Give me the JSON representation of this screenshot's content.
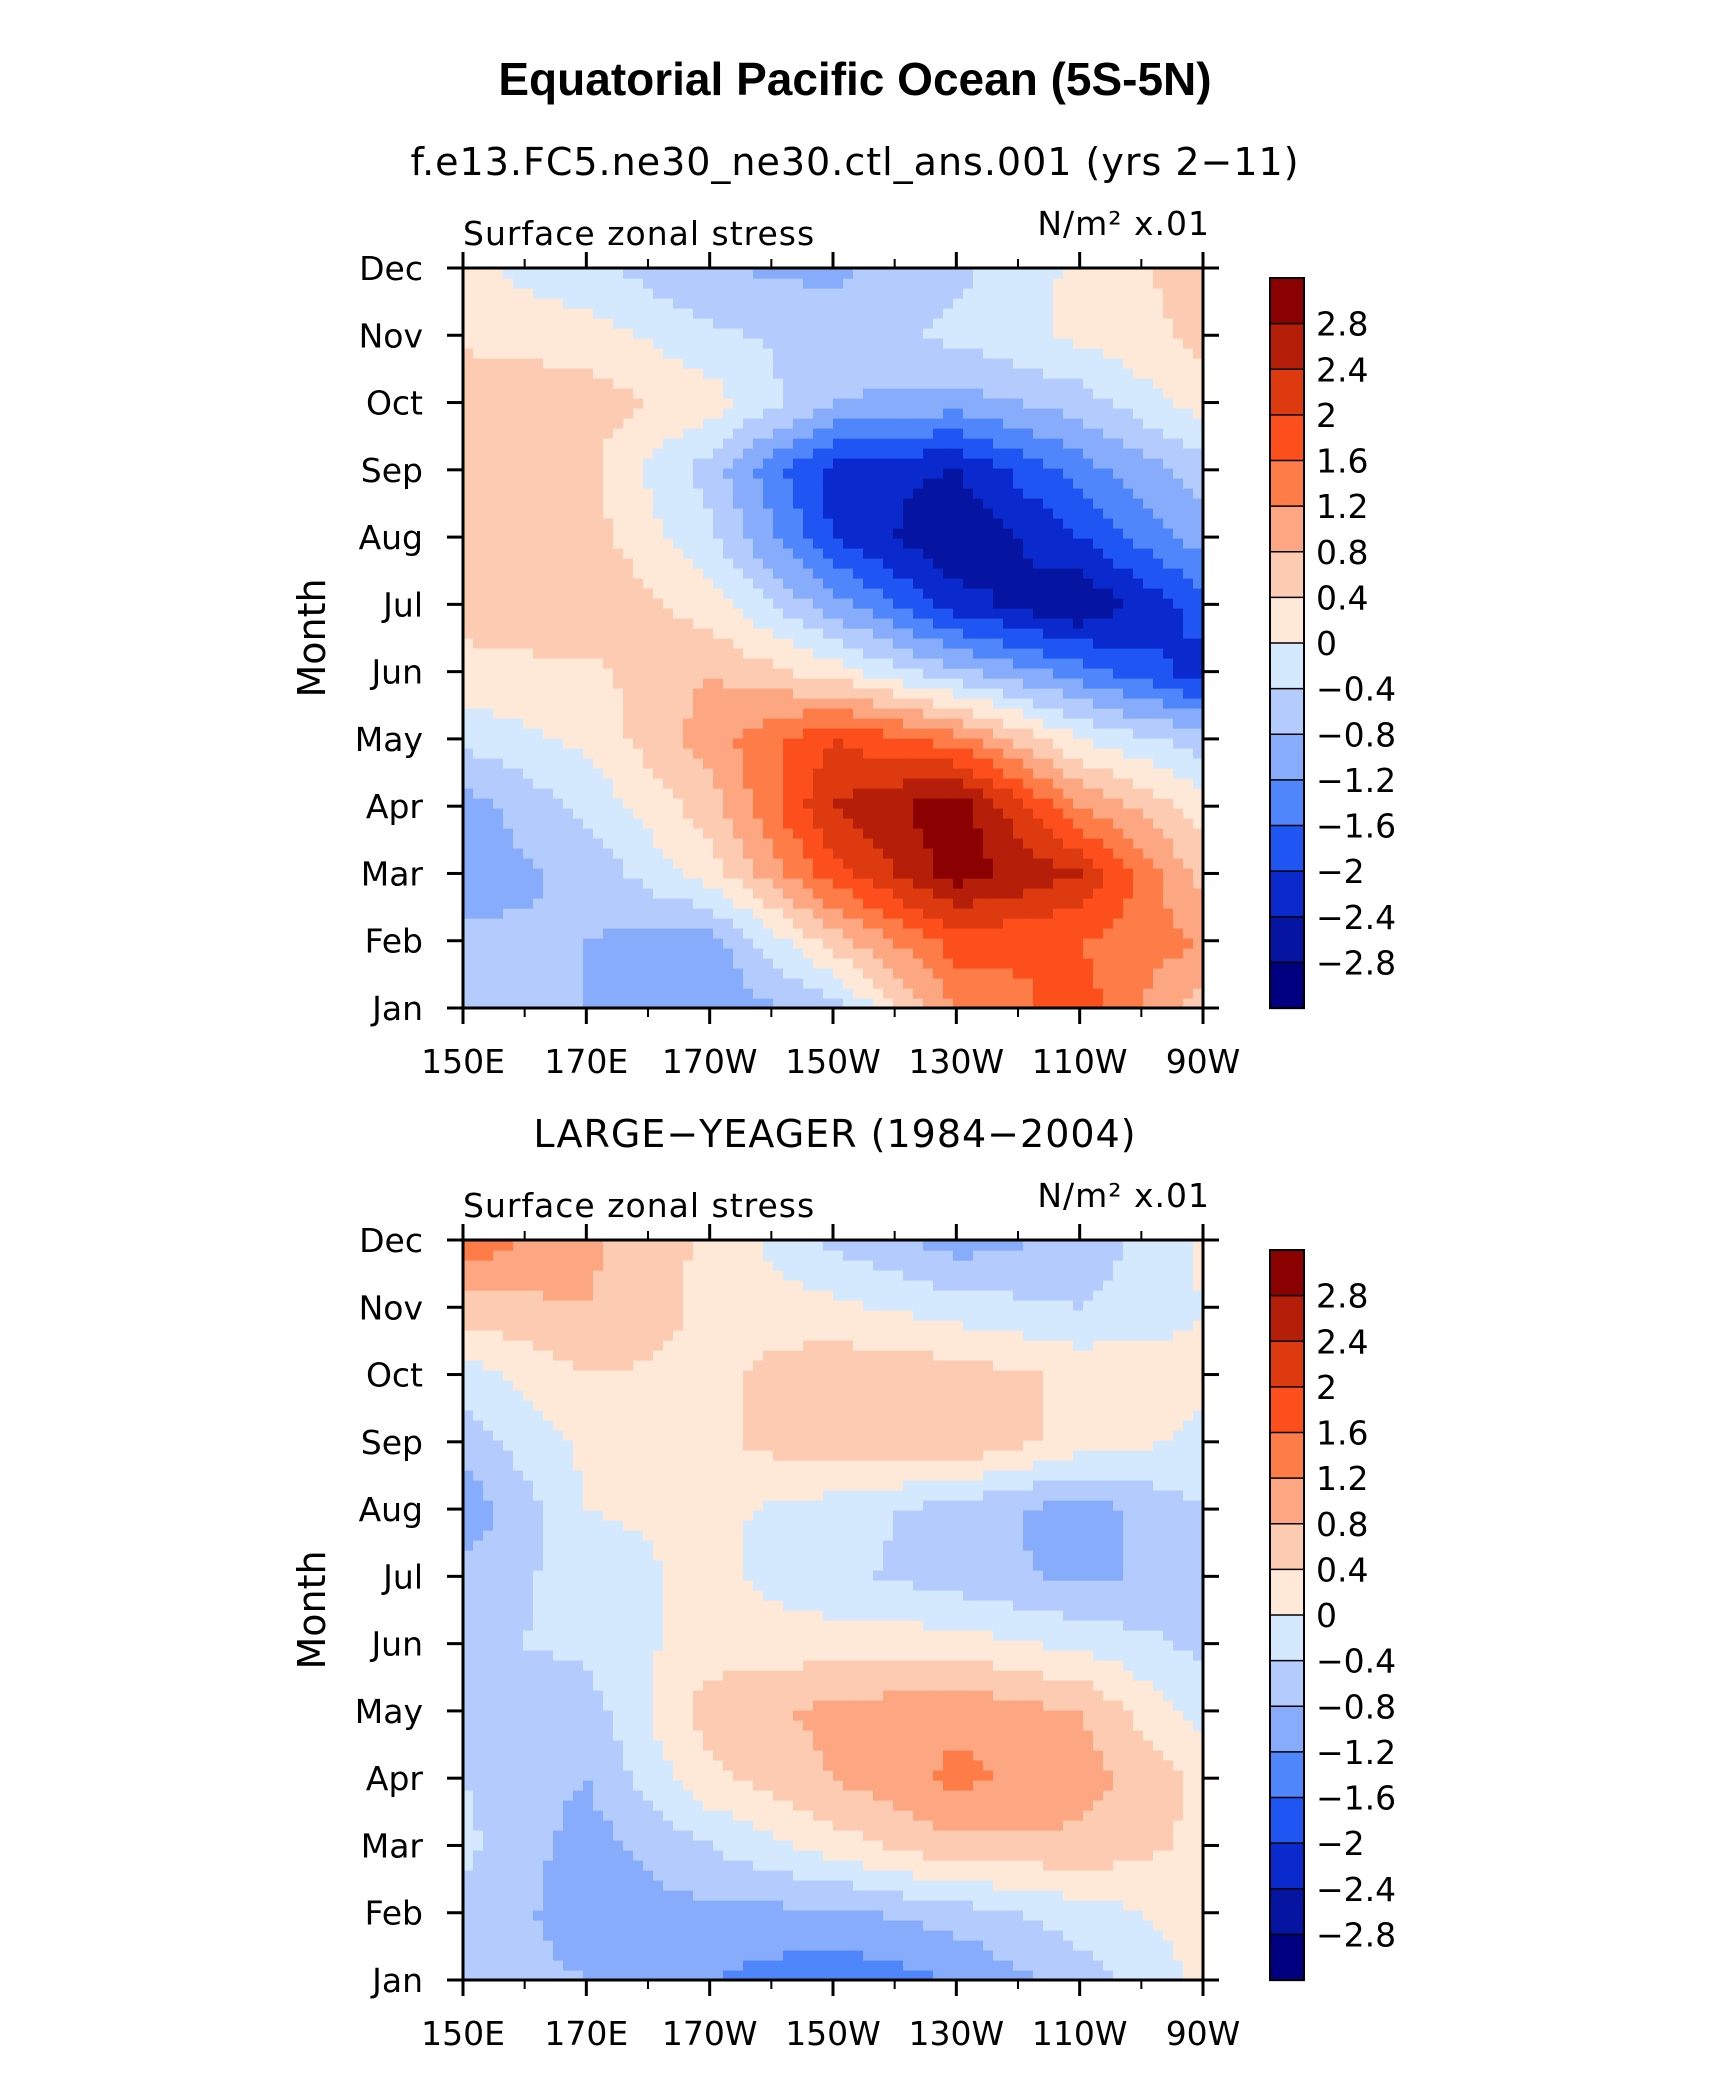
{
  "title": "Equatorial Pacific Ocean (5S-5N)",
  "chart_data": [
    {
      "type": "heatmap",
      "subtitle": "f.e13.FC5.ne30_ne30.ctl_ans.001 (yrs 2−11)",
      "left_label": "Surface zonal stress",
      "right_label": "N/m² x.01",
      "xlabel": "",
      "ylabel": "Month",
      "x_ticks": [
        "150E",
        "170E",
        "170W",
        "150W",
        "130W",
        "110W",
        "90W"
      ],
      "y_ticks": [
        "Jan",
        "Feb",
        "Mar",
        "Apr",
        "May",
        "Jun",
        "Jul",
        "Aug",
        "Sep",
        "Oct",
        "Nov",
        "Dec"
      ],
      "x": [
        150,
        170,
        190,
        210,
        230,
        250,
        270
      ],
      "y": [
        "Jan",
        "Feb",
        "Mar",
        "Apr",
        "May",
        "Jun",
        "Jul",
        "Aug",
        "Sep",
        "Oct",
        "Nov",
        "Dec"
      ],
      "z": [
        [
          -0.6,
          -0.8,
          -1.1,
          -0.6,
          1.2,
          1.8,
          0.6
        ],
        [
          -0.7,
          -0.8,
          -1.0,
          0.6,
          1.8,
          1.6,
          1.2
        ],
        [
          -1.0,
          -0.7,
          0.2,
          1.8,
          3.0,
          2.4,
          0.6
        ],
        [
          -1.0,
          -0.3,
          0.6,
          2.4,
          3.1,
          1.2,
          0.2
        ],
        [
          -0.3,
          0.1,
          1.0,
          2.0,
          1.4,
          0.0,
          -0.6
        ],
        [
          0.3,
          0.3,
          0.8,
          0.2,
          -0.7,
          -1.4,
          -2.2
        ],
        [
          0.5,
          0.8,
          0.2,
          -1.0,
          -2.2,
          -2.8,
          -1.8
        ],
        [
          0.5,
          0.6,
          -0.3,
          -2.0,
          -2.8,
          -2.0,
          -1.0
        ],
        [
          0.6,
          0.5,
          -0.6,
          -2.2,
          -2.4,
          -1.4,
          -0.6
        ],
        [
          0.7,
          0.6,
          0.2,
          -0.8,
          -1.0,
          -0.6,
          0.2
        ],
        [
          0.3,
          0.2,
          -0.3,
          -0.6,
          -0.3,
          0.1,
          0.5
        ],
        [
          0.1,
          -0.3,
          -0.8,
          -0.9,
          -0.5,
          0.1,
          0.6
        ]
      ],
      "colorbar_levels": [
        "2.8",
        "2.4",
        "2",
        "1.6",
        "1.2",
        "0.8",
        "0.4",
        "0",
        "−0.4",
        "−0.8",
        "−1.2",
        "−1.6",
        "−2",
        "−2.4",
        "−2.8"
      ]
    },
    {
      "type": "heatmap",
      "subtitle": "LARGE−YEAGER (1984−2004)",
      "left_label": "Surface zonal stress",
      "right_label": "N/m² x.01",
      "xlabel": "",
      "ylabel": "Month",
      "x_ticks": [
        "150E",
        "170E",
        "170W",
        "150W",
        "130W",
        "110W",
        "90W"
      ],
      "y_ticks": [
        "Jan",
        "Feb",
        "Mar",
        "Apr",
        "May",
        "Jun",
        "Jul",
        "Aug",
        "Sep",
        "Oct",
        "Nov",
        "Dec"
      ],
      "x": [
        150,
        170,
        190,
        210,
        230,
        250,
        270
      ],
      "y": [
        "Jan",
        "Feb",
        "Mar",
        "Apr",
        "May",
        "Jun",
        "Jul",
        "Aug",
        "Sep",
        "Oct",
        "Nov",
        "Dec"
      ],
      "z": [
        [
          -0.6,
          -0.8,
          -1.2,
          -1.5,
          -1.2,
          -0.6,
          0.1
        ],
        [
          -0.5,
          -1.0,
          -0.9,
          -0.9,
          -0.6,
          -0.2,
          0.2
        ],
        [
          -0.3,
          -1.0,
          -0.4,
          0.2,
          0.7,
          0.7,
          0.3
        ],
        [
          -0.4,
          -0.8,
          0.3,
          0.8,
          1.3,
          1.0,
          0.3
        ],
        [
          -0.6,
          -0.6,
          0.6,
          0.9,
          1.1,
          0.8,
          -0.2
        ],
        [
          -0.5,
          -0.3,
          0.2,
          0.2,
          0.2,
          -0.1,
          -0.5
        ],
        [
          -0.7,
          -0.2,
          0.1,
          -0.3,
          -0.6,
          -0.9,
          -0.6
        ],
        [
          -1.1,
          0.0,
          0.1,
          -0.2,
          -0.6,
          -1.0,
          -0.4
        ],
        [
          -0.6,
          0.1,
          0.3,
          0.7,
          0.8,
          0.2,
          -0.1
        ],
        [
          -0.2,
          0.4,
          0.3,
          0.7,
          0.6,
          0.3,
          0.1
        ],
        [
          0.6,
          0.8,
          0.3,
          0.1,
          -0.2,
          -0.4,
          0.0
        ],
        [
          1.5,
          0.9,
          0.3,
          -0.5,
          -1.0,
          -0.7,
          0.1
        ]
      ],
      "colorbar_levels": [
        "2.8",
        "2.4",
        "2",
        "1.6",
        "1.2",
        "0.8",
        "0.4",
        "0",
        "−0.4",
        "−0.8",
        "−1.2",
        "−1.6",
        "−2",
        "−2.4",
        "−2.8"
      ]
    }
  ],
  "colors": {
    "colorbar_fills": [
      "#8b0000",
      "#b51f09",
      "#dd3a10",
      "#fd4f1c",
      "#fd7c47",
      "#fda682",
      "#fdcbb2",
      "#fee8d8",
      "#d4e8fe",
      "#b3ccfd",
      "#87acfc",
      "#4f86fb",
      "#1e55f3",
      "#0a2acd",
      "#0615a1",
      "#000080"
    ],
    "bin_edges": [
      -2.8,
      -2.4,
      -2.0,
      -1.6,
      -1.2,
      -0.8,
      -0.4,
      0.0,
      0.4,
      0.8,
      1.2,
      1.6,
      2.0,
      2.4,
      2.8
    ]
  }
}
